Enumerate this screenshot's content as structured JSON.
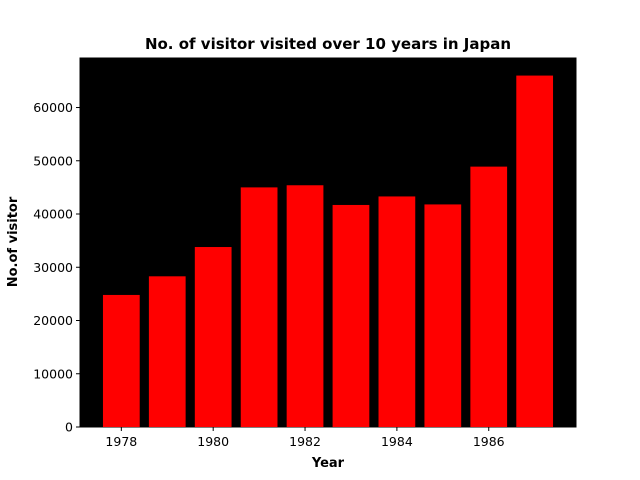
{
  "chart_data": {
    "type": "bar",
    "title": "No. of visitor visited over 10 years in Japan",
    "xlabel": "Year",
    "ylabel": "No.of visitor",
    "categories": [
      1978,
      1979,
      1980,
      1981,
      1982,
      1983,
      1984,
      1985,
      1986,
      1987
    ],
    "values": [
      24800,
      28300,
      33800,
      45000,
      45400,
      41700,
      43300,
      41800,
      48900,
      66000
    ],
    "x_ticks": [
      1978,
      1980,
      1982,
      1984,
      1986
    ],
    "y_ticks": [
      0,
      10000,
      20000,
      30000,
      40000,
      50000,
      60000
    ],
    "xlim": [
      1977.1,
      1987.9
    ],
    "ylim": [
      0,
      69300
    ],
    "grid": false,
    "bar_color": "#ff0000",
    "plot_background": "#000000"
  }
}
